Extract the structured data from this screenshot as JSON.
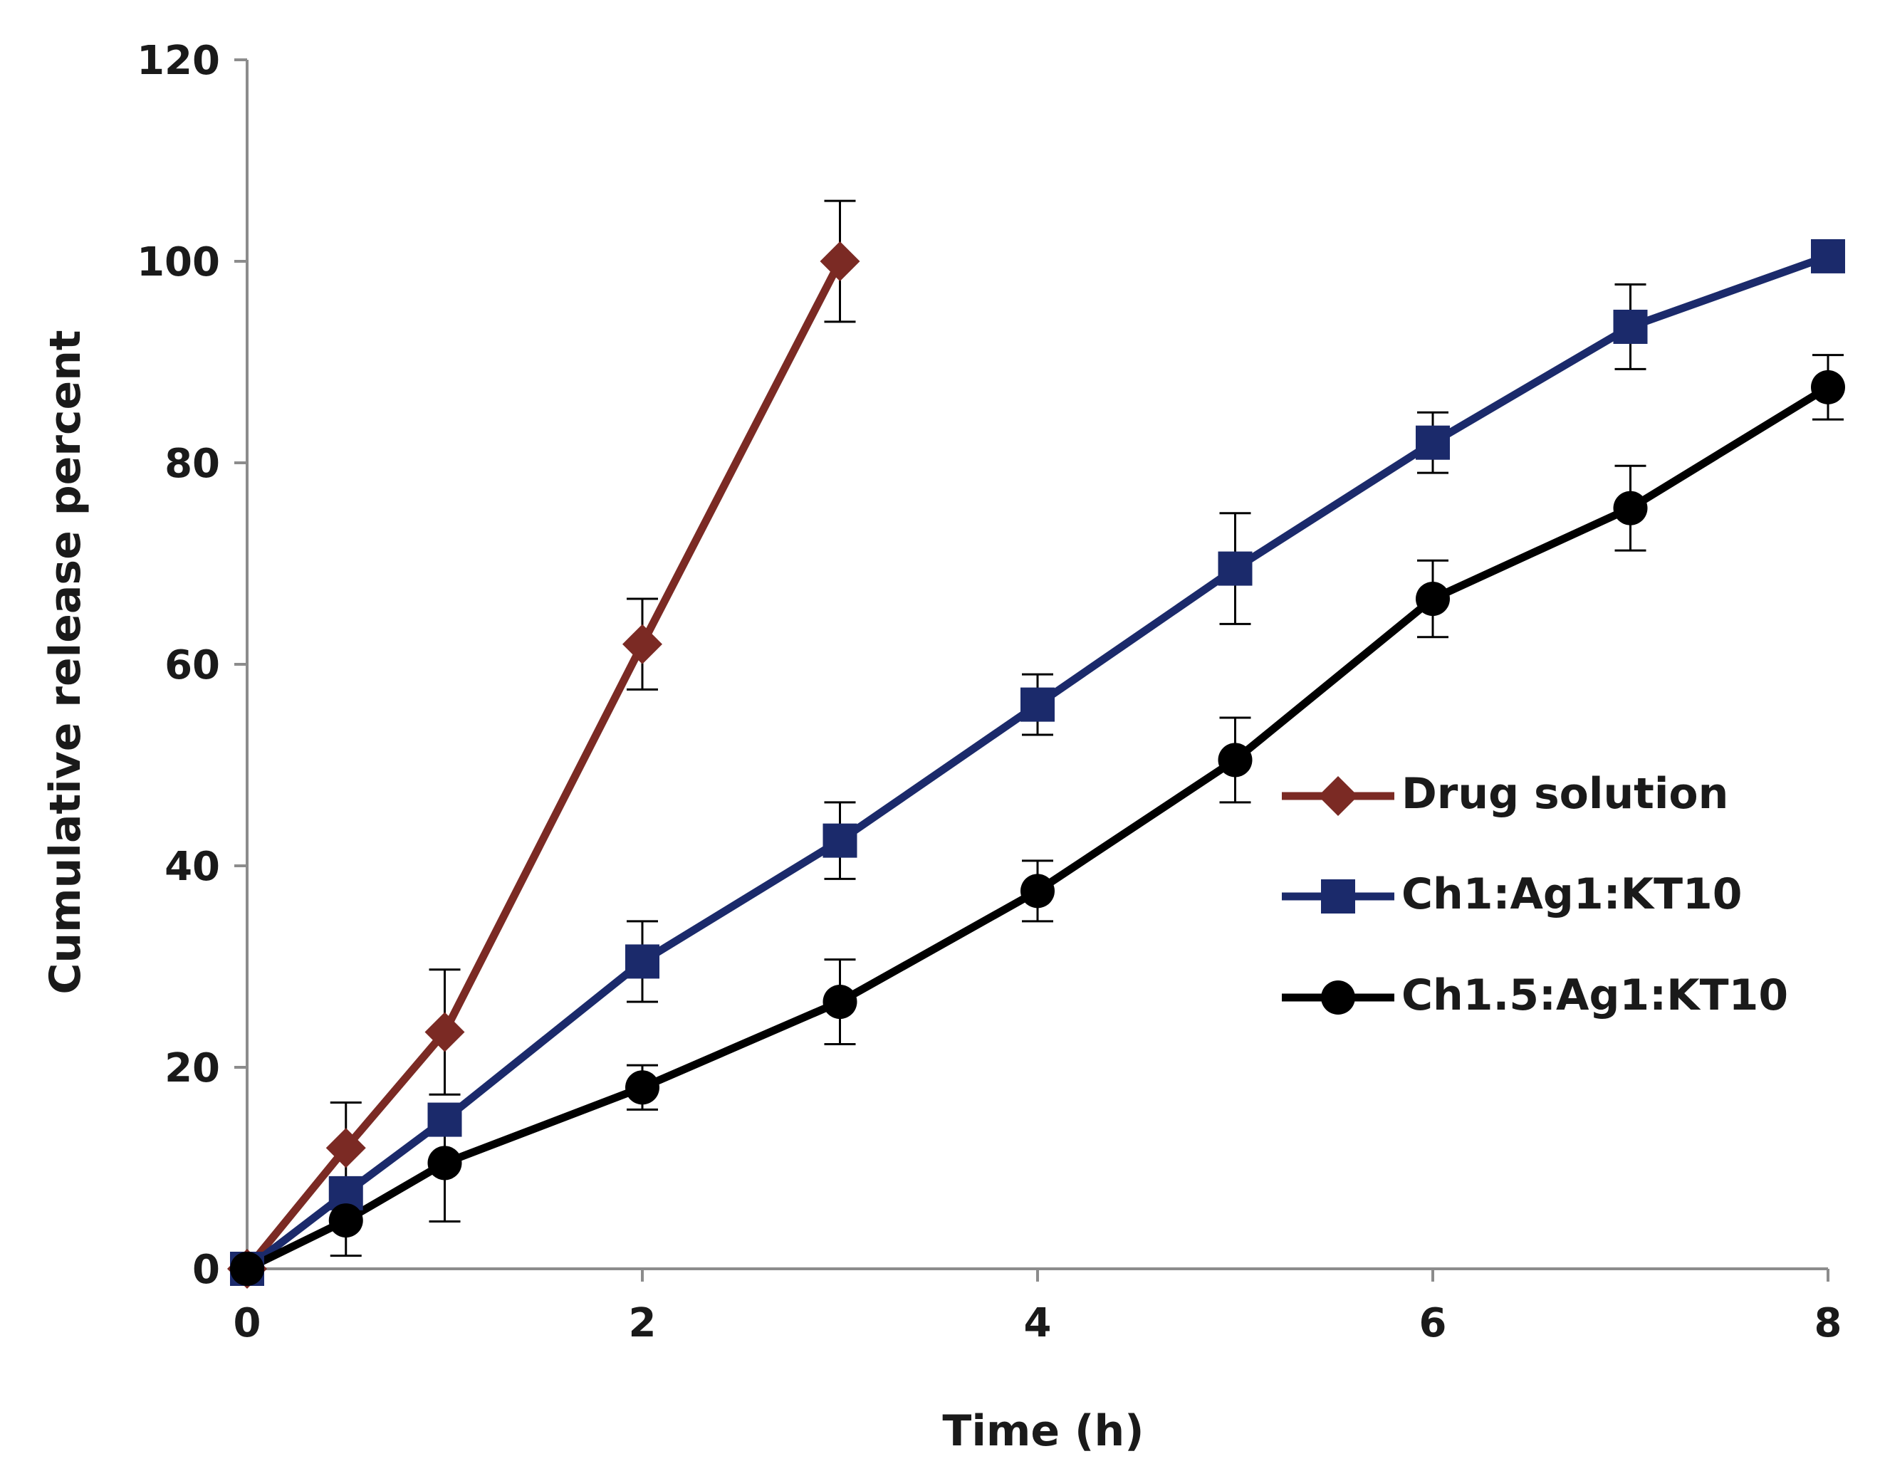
{
  "chart_data": {
    "type": "line",
    "xlabel": "Time (h)",
    "ylabel": "Cumulative release percent",
    "xlim": [
      0,
      8
    ],
    "ylim": [
      0,
      120
    ],
    "xticks": [
      "0",
      "2",
      "4",
      "6",
      "8"
    ],
    "yticks": [
      "0",
      "20",
      "40",
      "60",
      "80",
      "100",
      "120"
    ],
    "grid": false,
    "legend_position": "center-right",
    "series": [
      {
        "name": "Drug solution",
        "color": "#7b2a24",
        "marker": "diamond",
        "x": [
          0,
          0.5,
          1,
          2,
          3
        ],
        "y": [
          0,
          12,
          23.5,
          62,
          100
        ],
        "err": [
          0,
          4.5,
          6.2,
          4.5,
          6
        ]
      },
      {
        "name": "Ch1:Ag1:KT10",
        "color": "#1b2a6b",
        "marker": "square",
        "x": [
          0,
          0.5,
          1,
          2,
          3,
          4,
          5,
          6,
          7,
          8
        ],
        "y": [
          0,
          7.5,
          14.8,
          30.5,
          42.5,
          56,
          69.5,
          82,
          93.5,
          100.5
        ],
        "err": [
          0,
          0,
          0,
          4,
          3.8,
          3,
          5.5,
          3,
          4.2,
          0
        ]
      },
      {
        "name": "Ch1.5:Ag1:KT10",
        "color": "#000000",
        "marker": "circle",
        "x": [
          0,
          0.5,
          1,
          2,
          3,
          4,
          5,
          6,
          7,
          8
        ],
        "y": [
          0,
          4.8,
          10.5,
          18,
          26.5,
          37.5,
          50.5,
          66.5,
          75.5,
          87.5
        ],
        "err": [
          0,
          3.5,
          5.8,
          2.2,
          4.2,
          3,
          4.2,
          3.8,
          4.2,
          3.2
        ]
      }
    ]
  }
}
